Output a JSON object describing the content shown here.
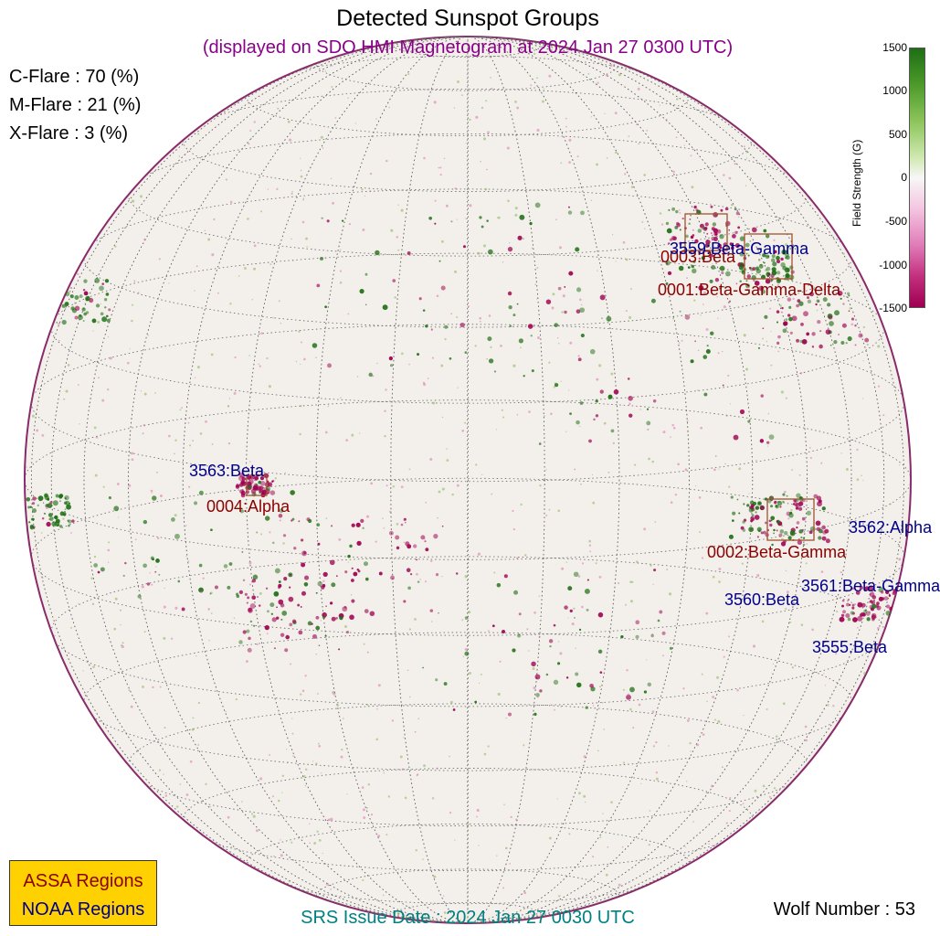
{
  "title": "Detected Sunspot Groups",
  "subtitle": "(displayed on SDO HMI Magnetogram at 2024 Jan 27 0300 UTC)",
  "flares": [
    {
      "label": "C-Flare : 70 (%)"
    },
    {
      "label": "M-Flare : 21 (%)"
    },
    {
      "label": "X-Flare :  3 (%)"
    }
  ],
  "colorbar": {
    "label": "Field Strength (G)",
    "ticks": [
      "1500",
      "1000",
      "500",
      "0",
      "-500",
      "-1000",
      "-1500"
    ],
    "positive_color": "#1e6e14",
    "negative_color": "#9e0050"
  },
  "regions": {
    "assa": [
      {
        "label": "0003:Beta"
      },
      {
        "label": "0001:Beta-Gamma-Delta"
      },
      {
        "label": "0004:Alpha"
      },
      {
        "label": "0002:Beta-Gamma"
      }
    ],
    "noaa": [
      {
        "label": "3559:Beta-Gamma"
      },
      {
        "label": "3563:Beta"
      },
      {
        "label": "3562:Alpha"
      },
      {
        "label": "3561:Beta-Gamma"
      },
      {
        "label": "3560:Beta"
      },
      {
        "label": "3555:Beta"
      }
    ]
  },
  "legend": {
    "assa": "ASSA Regions",
    "noaa": "NOAA Regions"
  },
  "srs_issue": "SRS Issue Date : 2024 Jan 27 0030 UTC",
  "wolf_number": "Wolf Number : 53",
  "colors": {
    "assa": "#8b0000",
    "noaa": "#00008b",
    "subtitle": "#8a008a",
    "srs": "#008080",
    "legend_bg": "#ffd100"
  }
}
